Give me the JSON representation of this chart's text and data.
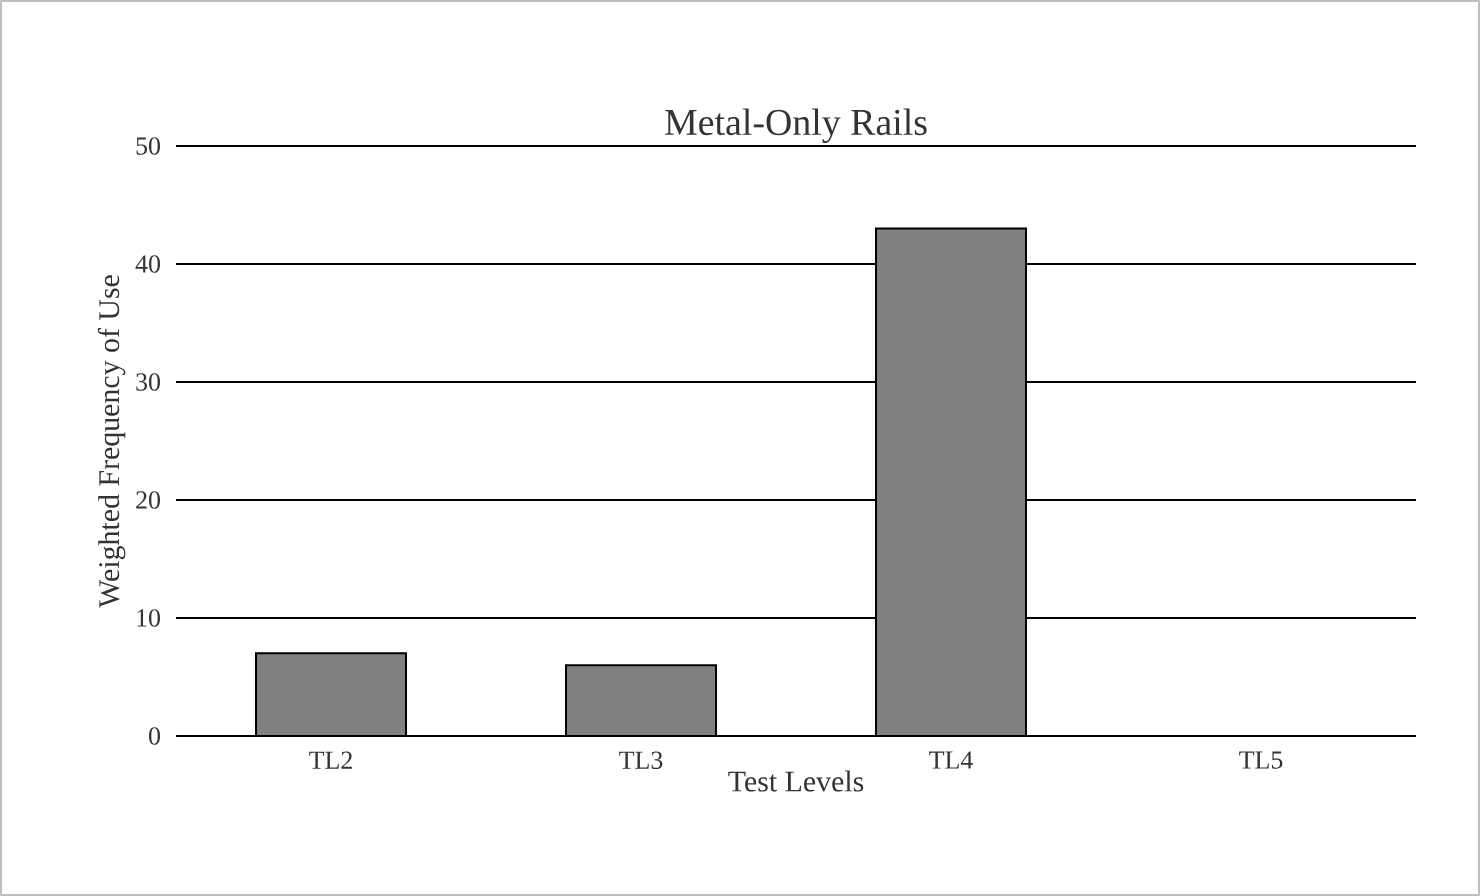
{
  "chart_data": {
    "type": "bar",
    "title": "Metal-Only Rails",
    "xlabel": "Test Levels",
    "ylabel": "Weighted Frequency of Use",
    "categories": [
      "TL2",
      "TL3",
      "TL4",
      "TL5"
    ],
    "values": [
      7,
      6,
      43,
      null
    ],
    "color": "#808080",
    "ylim": [
      0,
      50
    ],
    "yticks": [
      0,
      10,
      20,
      30,
      40,
      50
    ],
    "grid": "y"
  }
}
